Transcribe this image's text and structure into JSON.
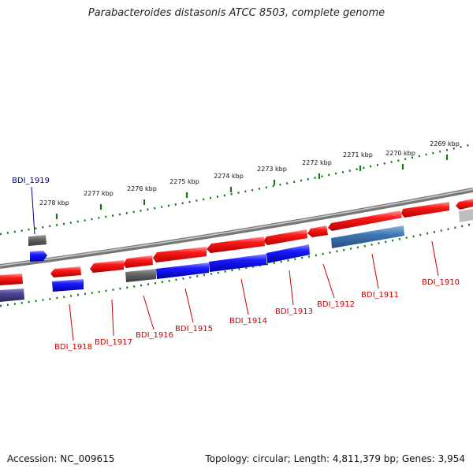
{
  "title": "Parabacteroides distasonis ATCC 8503, complete genome",
  "footer": {
    "accession": "Accession: NC_009615",
    "summary": "Topology: circular; Length: 4,811,379 bp; Genes: 3,954"
  },
  "colors": {
    "forward_gene": "#e8141e",
    "reverse_gene": "#1414e6",
    "rna_gene": "#5a5a5a",
    "pseudo_gene": "#3f77b3",
    "backbone": "#6e6e6e",
    "scale": "#147814",
    "label_red": "#c80000",
    "label_blue": "#000096"
  },
  "scale_ticks": [
    {
      "label": "2269 kbp"
    },
    {
      "label": "2270 kbp"
    },
    {
      "label": "2271 kbp"
    },
    {
      "label": "2272 kbp"
    },
    {
      "label": "2273 kbp"
    },
    {
      "label": "2274 kbp"
    },
    {
      "label": "2275 kbp"
    },
    {
      "label": "2276 kbp"
    },
    {
      "label": "2277 kbp"
    },
    {
      "label": "2278 kbp"
    }
  ],
  "gene_labels": [
    {
      "name": "BDI_1919",
      "color": "blue"
    },
    {
      "name": "BDI_1918",
      "color": "red"
    },
    {
      "name": "BDI_1917",
      "color": "red"
    },
    {
      "name": "BDI_1916",
      "color": "red"
    },
    {
      "name": "BDI_1915",
      "color": "red"
    },
    {
      "name": "BDI_1914",
      "color": "red"
    },
    {
      "name": "BDI_1913",
      "color": "red"
    },
    {
      "name": "BDI_1912",
      "color": "red"
    },
    {
      "name": "BDI_1911",
      "color": "red"
    },
    {
      "name": "BDI_1910",
      "color": "red"
    }
  ]
}
